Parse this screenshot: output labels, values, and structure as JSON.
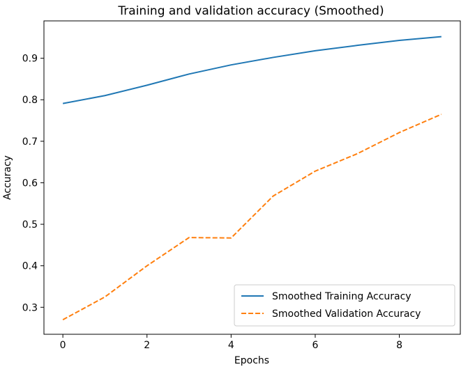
{
  "chart_data": {
    "type": "line",
    "title": "Training and validation accuracy (Smoothed)",
    "xlabel": "Epochs",
    "ylabel": "Accuracy",
    "xlim": [
      -0.45,
      9.45
    ],
    "ylim": [
      0.235,
      0.99
    ],
    "xticks": [
      0,
      2,
      4,
      6,
      8
    ],
    "xtick_labels": [
      "0",
      "2",
      "4",
      "6",
      "8"
    ],
    "yticks": [
      0.3,
      0.4,
      0.5,
      0.6,
      0.7,
      0.8,
      0.9
    ],
    "ytick_labels": [
      "0.3",
      "0.4",
      "0.5",
      "0.6",
      "0.7",
      "0.8",
      "0.9"
    ],
    "grid": false,
    "legend_position": "lower-right",
    "x": [
      0,
      1,
      2,
      3,
      4,
      5,
      6,
      7,
      8,
      9
    ],
    "series": [
      {
        "name": "Smoothed Training Accuracy",
        "values": [
          0.791,
          0.81,
          0.835,
          0.862,
          0.884,
          0.902,
          0.918,
          0.931,
          0.943,
          0.952
        ],
        "color": "#1f77b4",
        "style": "solid"
      },
      {
        "name": "Smoothed Validation Accuracy",
        "values": [
          0.27,
          0.325,
          0.4,
          0.468,
          0.467,
          0.568,
          0.628,
          0.67,
          0.721,
          0.765
        ],
        "color": "#ff7f0e",
        "style": "dashed"
      }
    ]
  }
}
